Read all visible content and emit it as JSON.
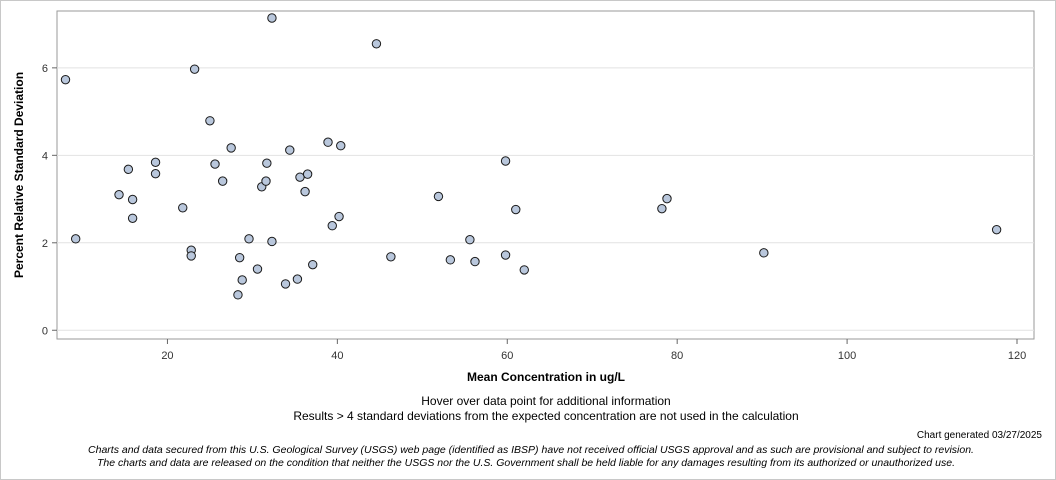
{
  "chart_data": {
    "type": "scatter",
    "xlabel": "Mean Concentration in ug/L",
    "ylabel": "Percent Relative Standard Deviation",
    "xlim": [
      7,
      122
    ],
    "ylim": [
      -0.2,
      7.3
    ],
    "x_ticks": [
      20,
      40,
      60,
      80,
      100,
      120
    ],
    "y_ticks": [
      0,
      2,
      4,
      6
    ],
    "grid": "horizontal",
    "marker_color": "#b9c7dc",
    "points": [
      {
        "x": 8.0,
        "y": 5.73
      },
      {
        "x": 9.2,
        "y": 2.09
      },
      {
        "x": 14.3,
        "y": 3.1
      },
      {
        "x": 15.4,
        "y": 3.68
      },
      {
        "x": 15.9,
        "y": 2.99
      },
      {
        "x": 15.9,
        "y": 2.56
      },
      {
        "x": 18.6,
        "y": 3.84
      },
      {
        "x": 18.6,
        "y": 3.58
      },
      {
        "x": 21.8,
        "y": 2.8
      },
      {
        "x": 22.8,
        "y": 1.83
      },
      {
        "x": 22.8,
        "y": 1.7
      },
      {
        "x": 23.2,
        "y": 5.97
      },
      {
        "x": 25.0,
        "y": 4.79
      },
      {
        "x": 25.6,
        "y": 3.8
      },
      {
        "x": 26.5,
        "y": 3.41
      },
      {
        "x": 27.5,
        "y": 4.17
      },
      {
        "x": 28.3,
        "y": 0.81
      },
      {
        "x": 28.5,
        "y": 1.66
      },
      {
        "x": 28.8,
        "y": 1.15
      },
      {
        "x": 29.6,
        "y": 2.09
      },
      {
        "x": 30.6,
        "y": 1.4
      },
      {
        "x": 31.1,
        "y": 3.28
      },
      {
        "x": 31.6,
        "y": 3.41
      },
      {
        "x": 31.7,
        "y": 3.82
      },
      {
        "x": 32.3,
        "y": 7.14
      },
      {
        "x": 32.3,
        "y": 2.03
      },
      {
        "x": 33.9,
        "y": 1.06
      },
      {
        "x": 34.4,
        "y": 4.12
      },
      {
        "x": 35.3,
        "y": 1.17
      },
      {
        "x": 35.6,
        "y": 3.5
      },
      {
        "x": 36.2,
        "y": 3.17
      },
      {
        "x": 36.5,
        "y": 3.57
      },
      {
        "x": 37.1,
        "y": 1.5
      },
      {
        "x": 38.9,
        "y": 4.3
      },
      {
        "x": 39.4,
        "y": 2.39
      },
      {
        "x": 40.2,
        "y": 2.6
      },
      {
        "x": 40.4,
        "y": 4.22
      },
      {
        "x": 44.6,
        "y": 6.55
      },
      {
        "x": 46.3,
        "y": 1.68
      },
      {
        "x": 51.9,
        "y": 3.06
      },
      {
        "x": 53.3,
        "y": 1.61
      },
      {
        "x": 55.6,
        "y": 2.07
      },
      {
        "x": 56.2,
        "y": 1.57
      },
      {
        "x": 59.8,
        "y": 3.87
      },
      {
        "x": 59.8,
        "y": 1.72
      },
      {
        "x": 61.0,
        "y": 2.76
      },
      {
        "x": 62.0,
        "y": 1.38
      },
      {
        "x": 78.2,
        "y": 2.78
      },
      {
        "x": 78.8,
        "y": 3.01
      },
      {
        "x": 90.2,
        "y": 1.77
      },
      {
        "x": 117.6,
        "y": 2.3
      }
    ]
  },
  "notes": {
    "hover": "Hover over data point for additional information",
    "exclusion": "Results > 4 standard deviations from the expected concentration are not used in the calculation"
  },
  "generated": "Chart generated 03/27/2025",
  "disclaimer": {
    "line1": "Charts and data secured from this U.S. Geological Survey (USGS) web page (identified as IBSP) have not received official USGS approval and as such are provisional and subject to revision.",
    "line2": "The charts and data are released on the condition that neither the USGS nor the U.S. Government shall be held liable for any damages resulting from its authorized or unauthorized use."
  }
}
